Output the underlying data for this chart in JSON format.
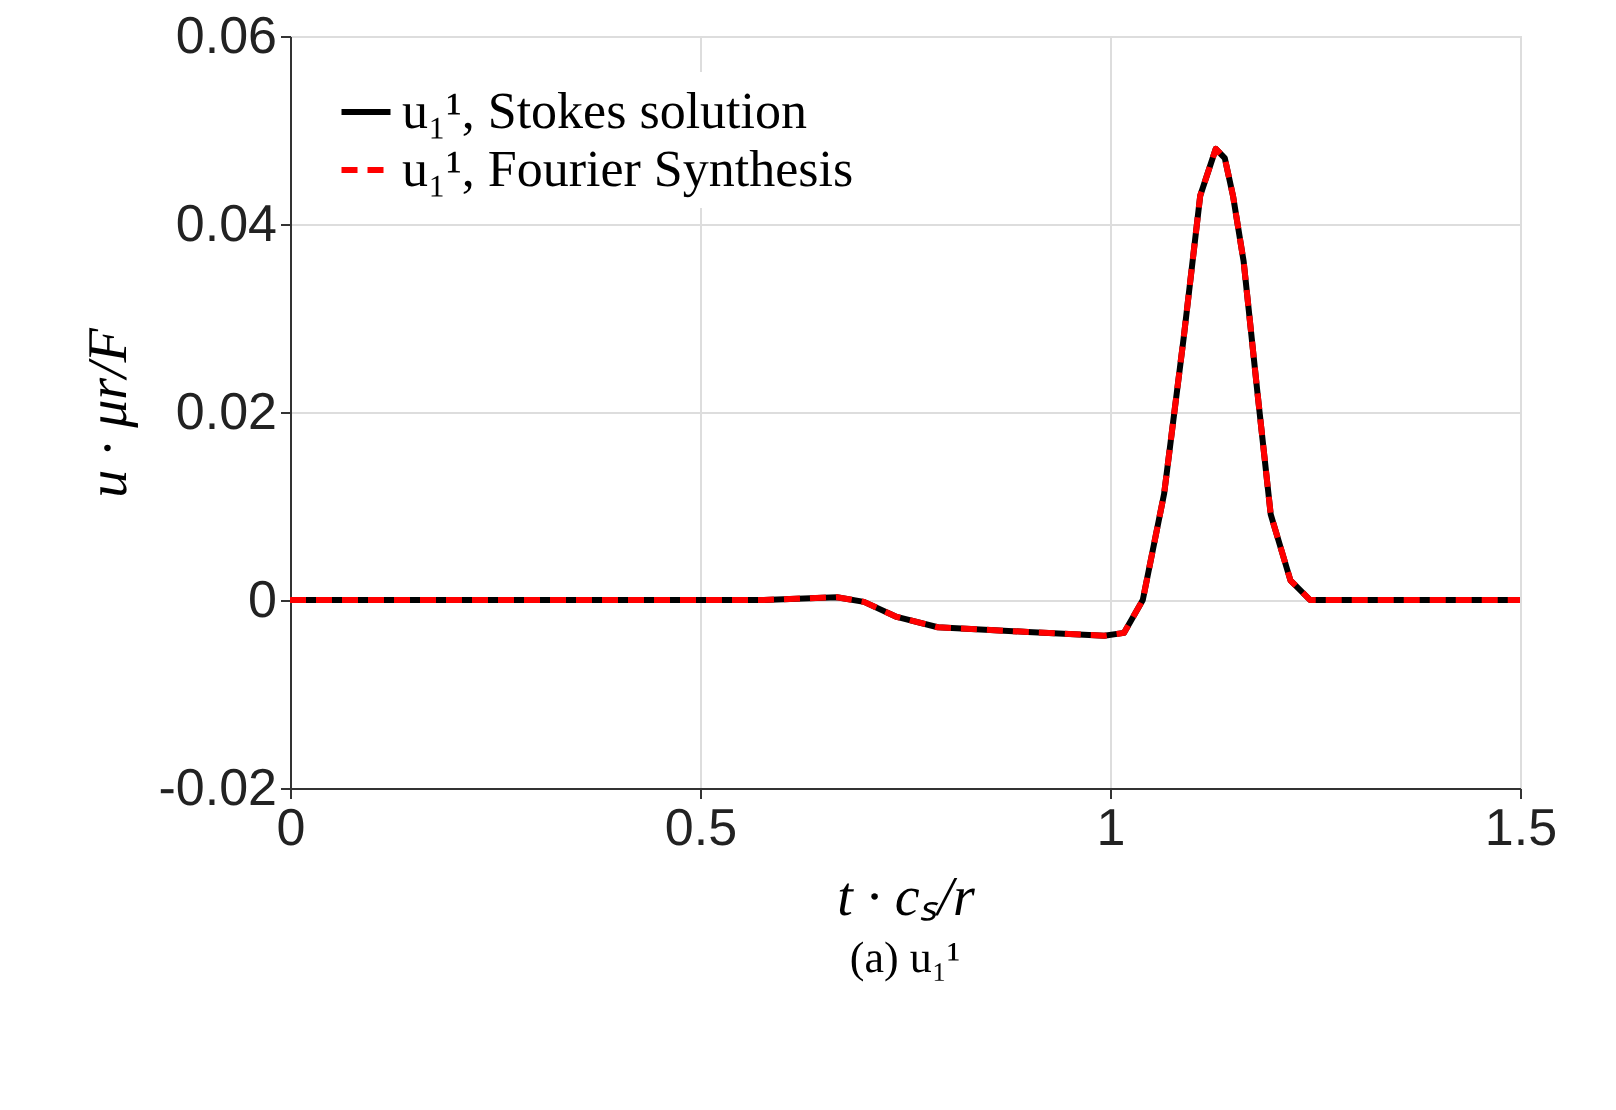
{
  "chart_data": {
    "type": "line",
    "x": [
      0,
      0.3,
      0.578,
      0.667,
      0.7,
      0.74,
      0.79,
      0.9,
      0.993,
      1.017,
      1.04,
      1.066,
      1.09,
      1.11,
      1.129,
      1.14,
      1.15,
      1.163,
      1.18,
      1.196,
      1.22,
      1.244,
      1.3,
      1.5
    ],
    "series": [
      {
        "name": "u₁¹, Stokes solution",
        "color": "#000000",
        "line_style": "solid",
        "values": [
          0,
          0,
          0,
          0.0003,
          -0.0002,
          -0.0018,
          -0.0029,
          -0.0034,
          -0.0038,
          -0.0035,
          0,
          0.0113,
          0.028,
          0.043,
          0.048,
          0.047,
          0.043,
          0.036,
          0.0219,
          0.0091,
          0.0021,
          0,
          0,
          0
        ]
      },
      {
        "name": "u₁¹, Fourier Synthesis",
        "color": "#ff0000",
        "line_style": "dashed",
        "values": [
          0,
          0,
          0,
          0.0003,
          -0.0002,
          -0.0018,
          -0.0029,
          -0.0034,
          -0.0038,
          -0.0035,
          0,
          0.0113,
          0.028,
          0.043,
          0.048,
          0.047,
          0.043,
          0.036,
          0.0219,
          0.0091,
          0.0021,
          0,
          0,
          0
        ]
      }
    ],
    "xlabel": "t · cₛ/r",
    "ylabel": "u · μr/F",
    "xlim": [
      0,
      1.5
    ],
    "xticks": [
      0,
      0.5,
      1,
      1.5
    ],
    "ylim": [
      -0.02,
      0.06
    ],
    "yticks": [
      -0.02,
      0,
      0.02,
      0.04,
      0.06
    ],
    "grid": true,
    "legend": "top left",
    "annotations": [
      "(a) u₁¹"
    ]
  }
}
